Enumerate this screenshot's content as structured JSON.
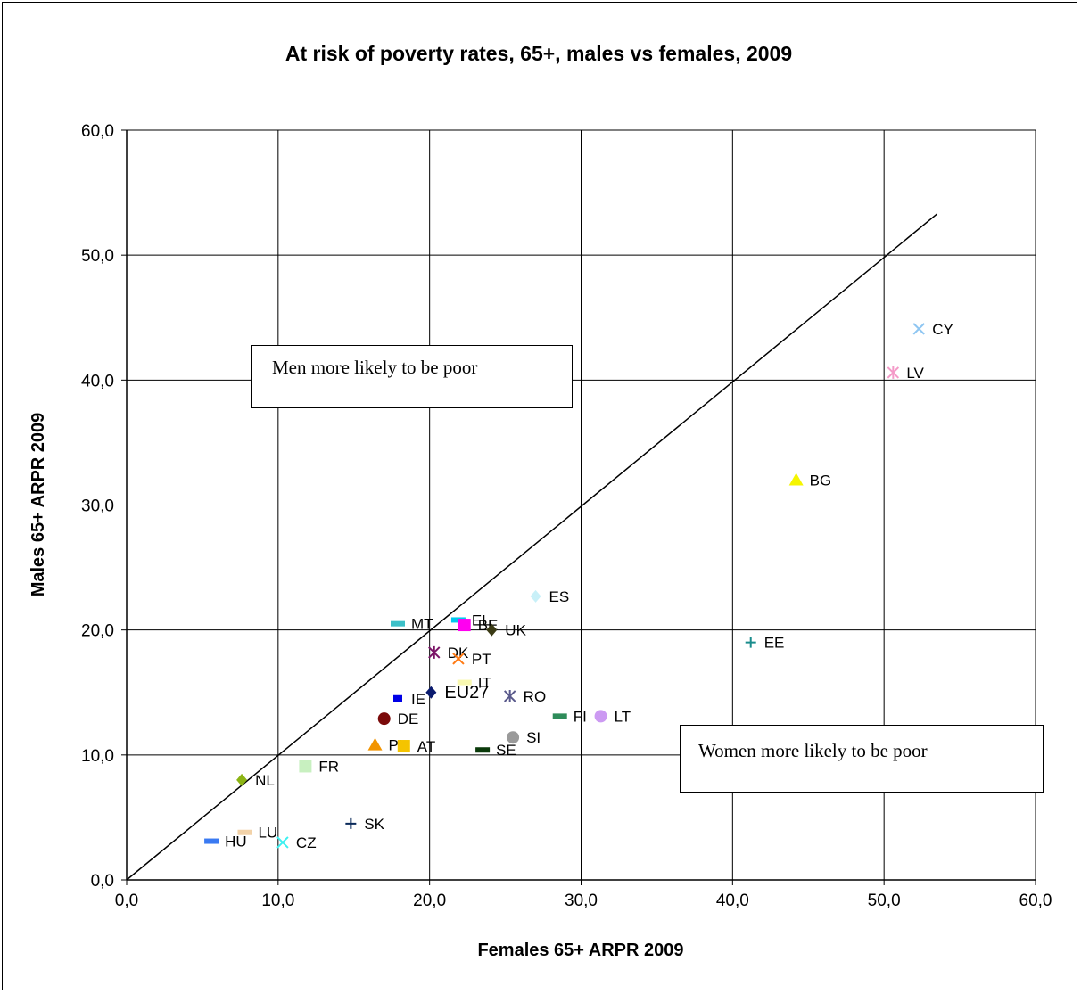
{
  "chart_data": {
    "type": "scatter",
    "title": "At risk of poverty rates, 65+, males vs females, 2009",
    "xlabel": "Females 65+ ARPR 2009",
    "ylabel": "Males 65+ ARPR 2009",
    "xlim": [
      0,
      60
    ],
    "ylim": [
      0,
      60
    ],
    "xticks": [
      "0,0",
      "10,0",
      "20,0",
      "30,0",
      "40,0",
      "50,0",
      "60,0"
    ],
    "yticks": [
      "0,0",
      "10,0",
      "20,0",
      "30,0",
      "40,0",
      "50,0",
      "60,0"
    ],
    "grid": true,
    "reference_line": {
      "x": [
        0,
        53.5
      ],
      "y": [
        0,
        53.3
      ]
    },
    "annotations": [
      {
        "id": "men",
        "text": "Men more likely to be poor"
      },
      {
        "id": "women",
        "text": "Women more likely to be poor"
      }
    ],
    "points": [
      {
        "label": "CY",
        "x": 52.3,
        "y": 44.1,
        "marker": "x",
        "color": "#8fc6f2"
      },
      {
        "label": "LV",
        "x": 50.6,
        "y": 40.6,
        "marker": "asterisk",
        "color": "#f49ac8"
      },
      {
        "label": "BG",
        "x": 44.2,
        "y": 32.0,
        "marker": "triangle",
        "color": "#f5f500"
      },
      {
        "label": "ES",
        "x": 27.0,
        "y": 22.7,
        "marker": "diamond",
        "color": "#c8f0f8"
      },
      {
        "label": "MT",
        "x": 17.9,
        "y": 20.5,
        "marker": "dash",
        "color": "#3cc0c8"
      },
      {
        "label": "EL",
        "x": 21.9,
        "y": 20.8,
        "marker": "dash",
        "color": "#00c8f0"
      },
      {
        "label": "BE",
        "x": 22.3,
        "y": 20.4,
        "marker": "square",
        "color": "#ff00f0"
      },
      {
        "label": "UK",
        "x": 24.1,
        "y": 20.0,
        "marker": "diamond",
        "color": "#3a3a14"
      },
      {
        "label": "EE",
        "x": 41.2,
        "y": 19.0,
        "marker": "plus",
        "color": "#1a8c8c"
      },
      {
        "label": "DK",
        "x": 20.3,
        "y": 18.2,
        "marker": "asterisk",
        "color": "#7a1466"
      },
      {
        "label": "PT",
        "x": 21.9,
        "y": 17.7,
        "marker": "x",
        "color": "#ff7a14"
      },
      {
        "label": "IT",
        "x": 22.3,
        "y": 15.8,
        "marker": "dash",
        "color": "#f8f8b0"
      },
      {
        "label": "EU27",
        "x": 20.1,
        "y": 15.0,
        "marker": "diamond",
        "color": "#0a1a6e",
        "big": true
      },
      {
        "label": "IE",
        "x": 17.9,
        "y": 14.5,
        "marker": "square-small",
        "color": "#0000e6"
      },
      {
        "label": "RO",
        "x": 25.3,
        "y": 14.7,
        "marker": "asterisk",
        "color": "#5a5a8c"
      },
      {
        "label": "DE",
        "x": 17.0,
        "y": 12.9,
        "marker": "circle",
        "color": "#7a0a0a"
      },
      {
        "label": "FI",
        "x": 28.6,
        "y": 13.1,
        "marker": "dash",
        "color": "#2e8c5a"
      },
      {
        "label": "LT",
        "x": 31.3,
        "y": 13.1,
        "marker": "circle",
        "color": "#cc9af2"
      },
      {
        "label": "SI",
        "x": 25.5,
        "y": 11.4,
        "marker": "circle",
        "color": "#9a9a9a"
      },
      {
        "label": "PL",
        "x": 16.4,
        "y": 10.8,
        "marker": "triangle",
        "color": "#f29400"
      },
      {
        "label": "AT",
        "x": 18.3,
        "y": 10.7,
        "marker": "square",
        "color": "#f5c400"
      },
      {
        "label": "SE",
        "x": 23.5,
        "y": 10.4,
        "marker": "dash",
        "color": "#0a3a0a"
      },
      {
        "label": "FR",
        "x": 11.8,
        "y": 9.1,
        "marker": "square",
        "color": "#c8f0c0"
      },
      {
        "label": "NL",
        "x": 7.6,
        "y": 8.0,
        "marker": "diamond",
        "color": "#8cb414"
      },
      {
        "label": "SK",
        "x": 14.8,
        "y": 4.5,
        "marker": "plus",
        "color": "#0a2a5a"
      },
      {
        "label": "LU",
        "x": 7.8,
        "y": 3.8,
        "marker": "dash",
        "color": "#f2d2a8"
      },
      {
        "label": "HU",
        "x": 5.6,
        "y": 3.1,
        "marker": "dash",
        "color": "#3a7af2"
      },
      {
        "label": "CZ",
        "x": 10.3,
        "y": 3.0,
        "marker": "x",
        "color": "#3cf0f0"
      }
    ]
  }
}
